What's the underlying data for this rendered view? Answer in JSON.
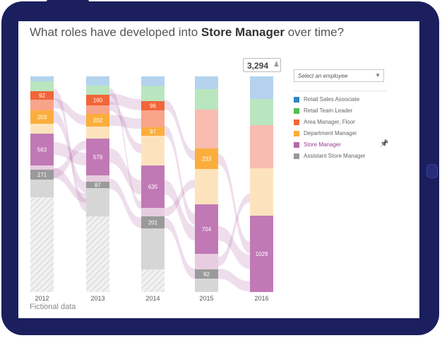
{
  "title_prefix": "What roles have developed into ",
  "title_bold": "Store Manager",
  "title_suffix": " over time?",
  "employee_select": {
    "placeholder": "Select an employee",
    "arrow": "▼"
  },
  "tooltip": {
    "value": "3,294",
    "icon": "person-icon"
  },
  "footer": "Fictional data",
  "legend": [
    {
      "label": "Retail Sales Associate",
      "color": "#2e86c1"
    },
    {
      "label": "Retail Team Leader",
      "color": "#52be52"
    },
    {
      "label": "Area Manager, Floor",
      "color": "#f26538"
    },
    {
      "label": "Department Manager",
      "color": "#fbae3c"
    },
    {
      "label": "Store Manager",
      "color": "#b36aa8",
      "active": true,
      "pin_icon": "pin-icon"
    },
    {
      "label": "Assistant Store Manager",
      "color": "#9a9a9a"
    }
  ],
  "chart_data": {
    "type": "bar",
    "subtype": "stacked-flow",
    "categories": [
      "2012",
      "2013",
      "2014",
      "2015",
      "2016"
    ],
    "stack_order_top_to_bottom": [
      "Retail Sales Associate",
      "Retail Team Leader",
      "Area Manager, Floor",
      "Other",
      "Department Manager",
      "Department Manager (light)",
      "Store Manager",
      "Store Manager (light)",
      "Assistant Store Manager",
      "Assistant Store Manager (light)",
      "No data"
    ],
    "labeled_values": {
      "Area Manager, Floor": [
        92,
        160,
        96,
        null,
        null
      ],
      "Department Manager": [
        203,
        202,
        97,
        233,
        null
      ],
      "Store Manager": [
        563,
        579,
        635,
        704,
        1029
      ],
      "Assistant Store Manager": [
        171,
        87,
        201,
        92,
        null
      ]
    },
    "highlight": {
      "category": "2016",
      "total": "3,294"
    }
  }
}
